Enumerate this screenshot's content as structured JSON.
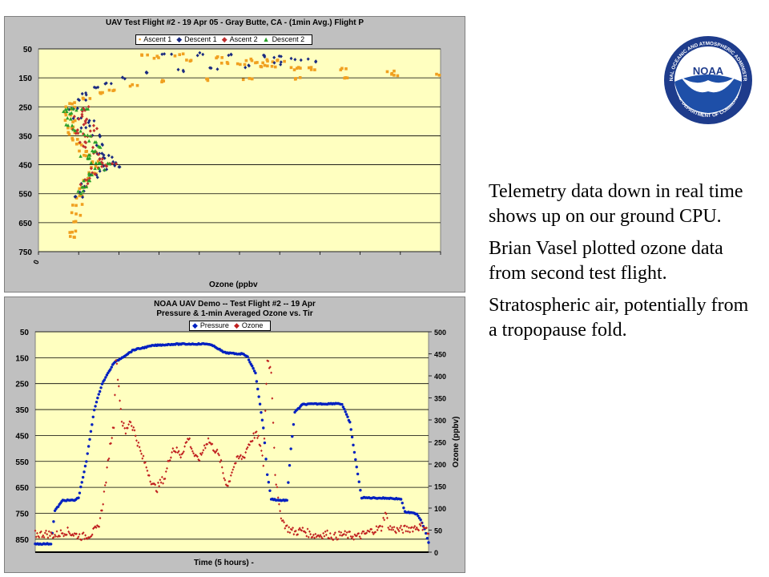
{
  "chart_data": [
    {
      "type": "scatter",
      "title": "UAV Test Flight #2 - 19 Apr 05 - Gray Butte, CA - (1min Avg.) Flight P",
      "xlabel": "Ozone (ppbv",
      "ylabel": "",
      "y_ticks": [
        "50",
        "150",
        "250",
        "350",
        "450",
        "550",
        "650",
        "750"
      ],
      "y_range": [
        50,
        750
      ],
      "y_inverted": true,
      "x_tick_labels": [
        "0"
      ],
      "x_range": [
        0,
        500
      ],
      "grid": "horizontal",
      "plot_background": "#ffffc0",
      "series": [
        {
          "name": "Ascent 1",
          "color": "#f0a020",
          "marker": "square",
          "points": [
            [
              45,
              700
            ],
            [
              45,
              680
            ],
            [
              44,
              650
            ],
            [
              46,
              620
            ],
            [
              48,
              590
            ],
            [
              52,
              560
            ],
            [
              56,
              530
            ],
            [
              62,
              500
            ],
            [
              68,
              480
            ],
            [
              72,
              460
            ],
            [
              68,
              440
            ],
            [
              60,
              420
            ],
            [
              54,
              400
            ],
            [
              50,
              380
            ],
            [
              46,
              360
            ],
            [
              44,
              340
            ],
            [
              42,
              320
            ],
            [
              40,
              300
            ],
            [
              38,
              275
            ],
            [
              40,
              255
            ],
            [
              45,
              240
            ],
            [
              60,
              225
            ],
            [
              78,
              205
            ],
            [
              95,
              190
            ],
            [
              120,
              175
            ],
            [
              160,
              163
            ],
            [
              210,
              155
            ],
            [
              260,
              152
            ],
            [
              320,
              150
            ],
            [
              380,
              146
            ],
            [
              440,
              142
            ],
            [
              495,
              138
            ],
            [
              440,
              130
            ],
            [
              380,
              122
            ],
            [
              330,
              115
            ],
            [
              280,
              108
            ],
            [
              230,
              100
            ],
            [
              190,
              92
            ],
            [
              150,
              80
            ],
            [
              130,
              75
            ],
            [
              175,
              72
            ],
            [
              225,
              80
            ],
            [
              260,
              86
            ],
            [
              290,
              90
            ],
            [
              300,
              92
            ],
            [
              275,
              96
            ],
            [
              250,
              103
            ],
            [
              290,
              110
            ],
            [
              320,
              118
            ],
            [
              340,
              118
            ]
          ]
        },
        {
          "name": "Descent 1",
          "color": "#1a2a80",
          "marker": "diamond",
          "points": [
            [
              160,
              70
            ],
            [
              200,
              68
            ],
            [
              240,
              72
            ],
            [
              280,
              76
            ],
            [
              300,
              80
            ],
            [
              320,
              85
            ],
            [
              340,
              90
            ],
            [
              300,
              100
            ],
            [
              260,
              110
            ],
            [
              220,
              118
            ],
            [
              180,
              124
            ],
            [
              140,
              134
            ],
            [
              110,
              150
            ],
            [
              85,
              168
            ],
            [
              70,
              185
            ],
            [
              60,
              205
            ],
            [
              55,
              225
            ],
            [
              45,
              260
            ],
            [
              50,
              290
            ],
            [
              60,
              320
            ],
            [
              70,
              350
            ],
            [
              74,
              380
            ],
            [
              78,
              410
            ],
            [
              82,
              430
            ],
            [
              88,
              450
            ],
            [
              80,
              470
            ],
            [
              70,
              490
            ],
            [
              60,
              520
            ],
            [
              55,
              545
            ],
            [
              52,
              560
            ],
            [
              90,
              445
            ],
            [
              100,
              455
            ],
            [
              85,
              420
            ],
            [
              65,
              300
            ]
          ]
        },
        {
          "name": "Ascent 2",
          "color": "#c03030",
          "marker": "diamond",
          "points": [
            [
              55,
              520
            ],
            [
              60,
              500
            ],
            [
              66,
              480
            ],
            [
              72,
              460
            ],
            [
              80,
              445
            ],
            [
              88,
              455
            ],
            [
              94,
              450
            ],
            [
              82,
              430
            ],
            [
              70,
              410
            ],
            [
              62,
              390
            ],
            [
              56,
              370
            ],
            [
              60,
              350
            ],
            [
              66,
              330
            ],
            [
              62,
              310
            ],
            [
              56,
              295
            ],
            [
              50,
              280
            ],
            [
              55,
              265
            ],
            [
              60,
              255
            ],
            [
              48,
              330
            ],
            [
              52,
              345
            ]
          ]
        },
        {
          "name": "Descent 2",
          "color": "#2aa02a",
          "marker": "triangle",
          "points": [
            [
              35,
              262
            ],
            [
              45,
              258
            ],
            [
              55,
              262
            ],
            [
              40,
              270
            ],
            [
              36,
              290
            ],
            [
              40,
              310
            ],
            [
              50,
              330
            ],
            [
              60,
              350
            ],
            [
              68,
              370
            ],
            [
              72,
              390
            ],
            [
              66,
              405
            ],
            [
              58,
              418
            ],
            [
              62,
              430
            ],
            [
              72,
              440
            ],
            [
              82,
              450
            ],
            [
              76,
              465
            ],
            [
              66,
              485
            ],
            [
              60,
              505
            ],
            [
              58,
              530
            ],
            [
              56,
              545
            ]
          ]
        }
      ]
    },
    {
      "type": "line",
      "title": "NOAA UAV Demo -- Test Flight #2 -- 19 Apr",
      "subtitle": "Pressure & 1-min Averaged Ozone vs. Tir",
      "xlabel": "Time (5 hours) -",
      "ylabel": "",
      "y2label": "Ozone (ppbv)",
      "y_ticks": [
        "50",
        "150",
        "250",
        "350",
        "450",
        "550",
        "650",
        "750",
        "850"
      ],
      "y_range": [
        50,
        900
      ],
      "y_inverted": true,
      "y2_ticks": [
        "500",
        "450",
        "400",
        "350",
        "300",
        "250",
        "200",
        "150",
        "100",
        "50",
        "0"
      ],
      "y2_range": [
        0,
        500
      ],
      "x_range": [
        0,
        100
      ],
      "grid": "horizontal",
      "plot_background": "#ffffc0",
      "series": [
        {
          "name": "Pressure",
          "color": "#0020c0",
          "axis": "left",
          "points": [
            [
              0,
              868
            ],
            [
              4,
              868
            ],
            [
              5,
              740
            ],
            [
              7,
              700
            ],
            [
              10,
              700
            ],
            [
              11,
              690
            ],
            [
              13,
              550
            ],
            [
              15,
              350
            ],
            [
              17,
              250
            ],
            [
              20,
              170
            ],
            [
              25,
              120
            ],
            [
              30,
              103
            ],
            [
              35,
              98
            ],
            [
              40,
              97
            ],
            [
              44,
              97
            ],
            [
              46,
              110
            ],
            [
              48,
              130
            ],
            [
              51,
              135
            ],
            [
              53,
              135
            ],
            [
              54,
              148
            ],
            [
              56,
              210
            ],
            [
              58,
              420
            ],
            [
              59,
              600
            ],
            [
              60,
              695
            ],
            [
              62,
              700
            ],
            [
              64,
              700
            ],
            [
              65,
              500
            ],
            [
              66,
              360
            ],
            [
              68,
              330
            ],
            [
              72,
              328
            ],
            [
              74,
              328
            ],
            [
              77,
              326
            ],
            [
              78,
              330
            ],
            [
              80,
              400
            ],
            [
              82,
              600
            ],
            [
              83,
              690
            ],
            [
              90,
              692
            ],
            [
              93,
              695
            ],
            [
              94,
              745
            ],
            [
              97,
              752
            ],
            [
              98,
              775
            ],
            [
              99,
              810
            ],
            [
              100,
              862
            ]
          ]
        },
        {
          "name": "Ozone",
          "color": "#c02020",
          "axis": "right",
          "points": [
            [
              0,
              40
            ],
            [
              3,
              42
            ],
            [
              5,
              38
            ],
            [
              8,
              48
            ],
            [
              10,
              40
            ],
            [
              12,
              35
            ],
            [
              14,
              40
            ],
            [
              16,
              55
            ],
            [
              17,
              100
            ],
            [
              18,
              165
            ],
            [
              19,
              240
            ],
            [
              20,
              290
            ],
            [
              20.5,
              440
            ],
            [
              21,
              400
            ],
            [
              22,
              300
            ],
            [
              23,
              270
            ],
            [
              24,
              300
            ],
            [
              25,
              280
            ],
            [
              26,
              250
            ],
            [
              27,
              220
            ],
            [
              28,
              200
            ],
            [
              29,
              175
            ],
            [
              30,
              150
            ],
            [
              31,
              145
            ],
            [
              32,
              160
            ],
            [
              33,
              170
            ],
            [
              34,
              210
            ],
            [
              35,
              235
            ],
            [
              36,
              230
            ],
            [
              37,
              220
            ],
            [
              38,
              240
            ],
            [
              39,
              260
            ],
            [
              40,
              230
            ],
            [
              41,
              210
            ],
            [
              42,
              215
            ],
            [
              43,
              240
            ],
            [
              44,
              255
            ],
            [
              45,
              240
            ],
            [
              46,
              230
            ],
            [
              47,
              210
            ],
            [
              48,
              170
            ],
            [
              49,
              150
            ],
            [
              50,
              185
            ],
            [
              51,
              205
            ],
            [
              52,
              215
            ],
            [
              53,
              215
            ],
            [
              54,
              240
            ],
            [
              55,
              255
            ],
            [
              56,
              270
            ],
            [
              57,
              250
            ],
            [
              58,
              200
            ],
            [
              59,
              440
            ],
            [
              60,
              410
            ],
            [
              60.5,
              300
            ],
            [
              61,
              180
            ],
            [
              62,
              100
            ],
            [
              63,
              70
            ],
            [
              64,
              55
            ],
            [
              66,
              45
            ],
            [
              68,
              50
            ],
            [
              70,
              40
            ],
            [
              72,
              38
            ],
            [
              74,
              42
            ],
            [
              76,
              35
            ],
            [
              78,
              40
            ],
            [
              80,
              38
            ],
            [
              82,
              35
            ],
            [
              84,
              42
            ],
            [
              86,
              50
            ],
            [
              88,
              55
            ],
            [
              89,
              90
            ],
            [
              90,
              55
            ],
            [
              92,
              50
            ],
            [
              94,
              52
            ],
            [
              96,
              55
            ],
            [
              98,
              58
            ],
            [
              99,
              60
            ],
            [
              100,
              40
            ]
          ]
        }
      ]
    }
  ],
  "legend1": [
    {
      "label": "Ascent 1",
      "symbol": "▪",
      "color": "#f0a020"
    },
    {
      "label": "Descent 1",
      "symbol": "◆",
      "color": "#1a2a80"
    },
    {
      "label": "Ascent 2",
      "symbol": "◆",
      "color": "#c03030"
    },
    {
      "label": "Descent 2",
      "symbol": "▲",
      "color": "#2aa02a"
    }
  ],
  "legend2": [
    {
      "label": "Pressure",
      "symbol": "◆",
      "color": "#0020c0"
    },
    {
      "label": "Ozone",
      "symbol": "◆",
      "color": "#c02020"
    }
  ],
  "side_text": [
    "Telemetry data down in real time shows up on our ground CPU.",
    "Brian Vasel plotted ozone data from second test flight.",
    "Stratospheric air, potentially from a tropopause  fold."
  ],
  "logo": {
    "center_text": "NOAA",
    "ring_text_top": "NATIONAL OCEANIC AND ATMOSPHERIC ADMINISTRATION",
    "ring_text_bottom": "U.S. DEPARTMENT OF COMMERCE",
    "colors": {
      "outer": "#1e3c8c",
      "inner": "#ffffff",
      "bird": "#ffffff",
      "sky": "#1e4fa8"
    }
  }
}
